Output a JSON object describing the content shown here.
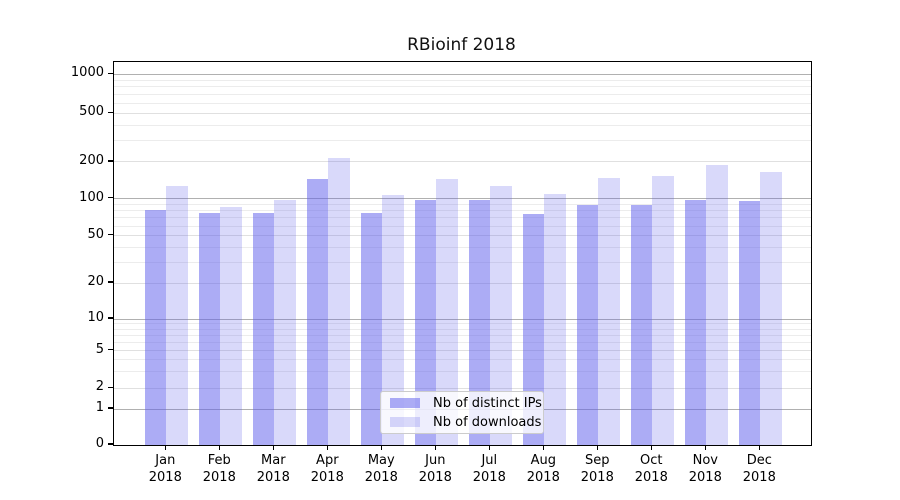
{
  "title": "RBioinf 2018",
  "chart_data": {
    "type": "bar",
    "title": "RBioinf 2018",
    "categories": [
      "Jan",
      "Feb",
      "Mar",
      "Apr",
      "May",
      "Jun",
      "Jul",
      "Aug",
      "Sep",
      "Oct",
      "Nov",
      "Dec"
    ],
    "category_year": "2018",
    "series": [
      {
        "name": "Nb of distinct IPs",
        "color": "rgba(95,95,235,0.52)",
        "values": [
          81,
          76,
          77,
          144,
          77,
          97,
          97,
          75,
          88,
          89,
          98,
          95
        ]
      },
      {
        "name": "Nb of downloads",
        "color": "rgba(95,95,235,0.235)",
        "values": [
          127,
          86,
          98,
          215,
          107,
          145,
          127,
          110,
          148,
          154,
          190,
          164
        ]
      }
    ],
    "y_axis": {
      "scale": "log",
      "tick_values": [
        0,
        1,
        2,
        5,
        10,
        20,
        50,
        100,
        200,
        500,
        1000
      ],
      "tick_labels": [
        "0",
        "1",
        "2",
        "5",
        "10",
        "20",
        "50",
        "100",
        "200",
        "500",
        "1000"
      ]
    },
    "grid": true,
    "legend_position": "lower center",
    "colors": {
      "major_gridline": "#b0b0b0",
      "labeled_gridline": "#e0e0e0",
      "minor_gridline": "#ececec",
      "spine": "#000000"
    }
  }
}
